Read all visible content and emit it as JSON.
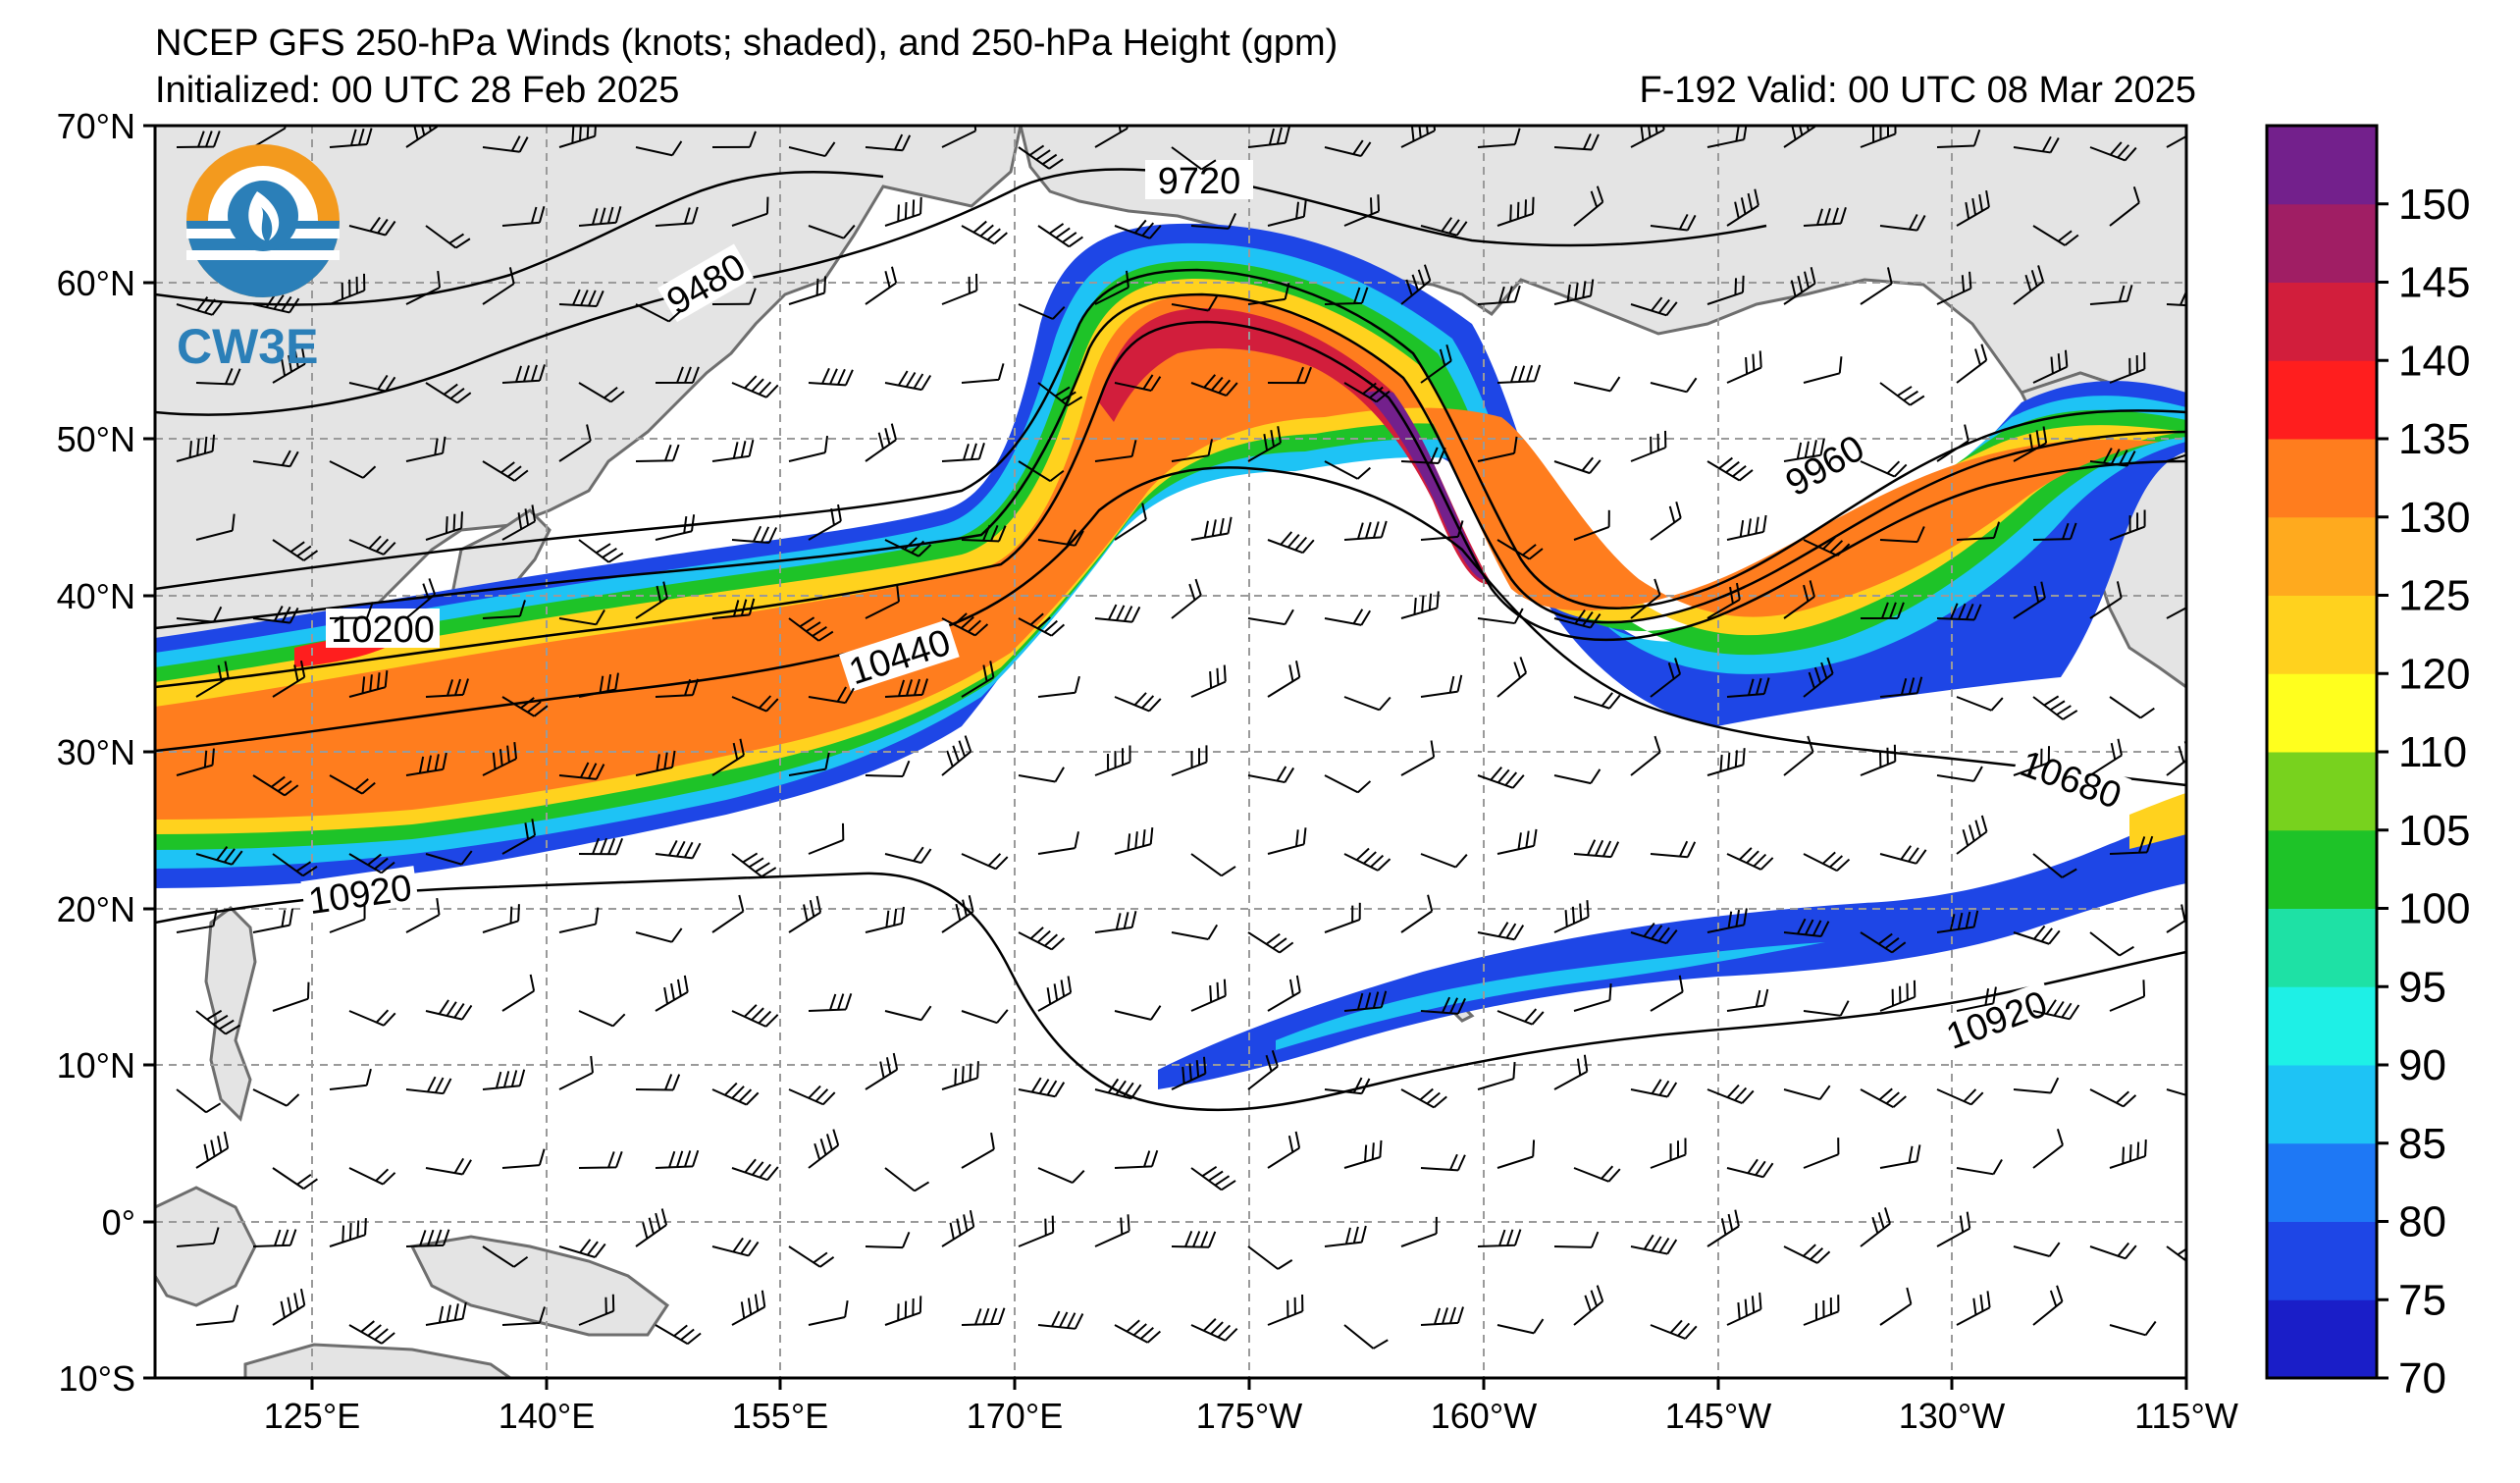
{
  "header": {
    "title": "NCEP GFS 250-hPa Winds (knots; shaded), and 250-hPa Height (gpm)",
    "initialized": "Initialized: 00 UTC 28 Feb 2025",
    "valid": "F-192  Valid: 00 UTC 08 Mar 2025"
  },
  "logo": {
    "text": "CW3E"
  },
  "axes": {
    "lat_labels": [
      "70°N",
      "60°N",
      "50°N",
      "40°N",
      "30°N",
      "20°N",
      "10°N",
      "0°",
      "10°S"
    ],
    "lon_labels": [
      "125°E",
      "140°E",
      "155°E",
      "170°E",
      "175°W",
      "160°W",
      "145°W",
      "130°W",
      "115°W"
    ]
  },
  "colorbar": {
    "labels": [
      "70",
      "75",
      "80",
      "85",
      "90",
      "95",
      "100",
      "105",
      "110",
      "120",
      "125",
      "130",
      "135",
      "140",
      "145",
      "150"
    ],
    "colors": [
      "#1a1ec8",
      "#1e46e6",
      "#1e78f5",
      "#1ec3f5",
      "#1ef0e6",
      "#1ee1a5",
      "#1ec328",
      "#78d21e",
      "#ffff1e",
      "#ffd21e",
      "#ffaa1e",
      "#ff7d1e",
      "#ff1e1e",
      "#d21e3c",
      "#a01e64",
      "#73208c"
    ]
  },
  "contour_labels": [
    {
      "name": "contour-label-9480",
      "text": "9480"
    },
    {
      "name": "contour-label-9720",
      "text": "9720"
    },
    {
      "name": "contour-label-9960",
      "text": "9960"
    },
    {
      "name": "contour-label-10200",
      "text": "10200"
    },
    {
      "name": "contour-label-10440",
      "text": "10440"
    },
    {
      "name": "contour-label-10680",
      "text": "10680"
    },
    {
      "name": "contour-label-10920-west",
      "text": "10920"
    },
    {
      "name": "contour-label-10920-east",
      "text": "10920"
    }
  ]
}
